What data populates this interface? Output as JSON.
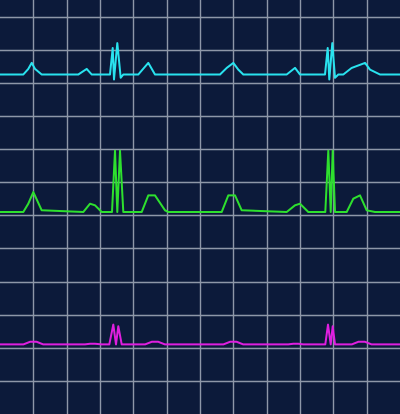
{
  "colors": {
    "background": "#0c1a3a",
    "grid": "#8e97a8",
    "trace_top": "#29e3ef",
    "trace_middle": "#2ee02e",
    "trace_bottom": "#df1fdf"
  },
  "chart_data": {
    "type": "line",
    "title": "",
    "xlabel": "",
    "ylabel": "",
    "grid": true,
    "legend": "none",
    "x_range": [
      0,
      12
    ],
    "y_range": [
      0,
      12.5
    ],
    "vertical_gridlines_x": [
      1,
      2,
      3,
      4,
      5,
      6,
      7,
      8,
      9,
      10,
      11
    ],
    "horizontal_gridlines_y": [
      1,
      2,
      3,
      4,
      5,
      6,
      7,
      8,
      9,
      10,
      11,
      12
    ],
    "series": [
      {
        "key": "top",
        "color": "#29e3ef",
        "baseline": 10.25,
        "x": [
          0.0,
          0.7,
          0.85,
          0.95,
          1.05,
          1.25,
          2.35,
          2.6,
          2.75,
          2.95,
          3.2,
          3.3,
          3.38,
          3.42,
          3.52,
          3.62,
          3.7,
          3.8,
          4.15,
          4.45,
          4.65,
          4.95,
          5.1,
          6.6,
          6.8,
          7.0,
          7.15,
          7.3,
          8.6,
          8.85,
          9.0,
          9.2,
          9.65,
          9.75,
          9.83,
          9.88,
          9.97,
          10.05,
          10.15,
          10.3,
          10.55,
          10.95,
          11.1,
          11.4,
          12.0
        ],
        "y": [
          10.25,
          10.25,
          10.42,
          10.6,
          10.42,
          10.25,
          10.25,
          10.42,
          10.25,
          10.25,
          10.25,
          10.25,
          11.05,
          10.1,
          11.2,
          10.15,
          10.25,
          10.25,
          10.25,
          10.6,
          10.25,
          10.25,
          10.25,
          10.25,
          10.45,
          10.6,
          10.4,
          10.25,
          10.25,
          10.45,
          10.25,
          10.25,
          10.25,
          10.25,
          11.05,
          10.1,
          11.2,
          10.15,
          10.25,
          10.25,
          10.45,
          10.6,
          10.4,
          10.25,
          10.25
        ]
      },
      {
        "key": "middle",
        "color": "#2ee02e",
        "baseline": 6.1,
        "x": [
          0.0,
          0.7,
          0.85,
          1.0,
          1.25,
          2.5,
          2.7,
          2.85,
          3.05,
          3.3,
          3.36,
          3.45,
          3.52,
          3.6,
          3.7,
          3.8,
          4.25,
          4.45,
          4.65,
          4.95,
          5.05,
          6.65,
          6.85,
          7.05,
          7.25,
          8.6,
          8.85,
          9.0,
          9.25,
          9.7,
          9.76,
          9.85,
          9.92,
          9.98,
          10.05,
          10.15,
          10.4,
          10.6,
          10.8,
          11.0,
          11.25,
          12.0
        ],
        "y": [
          6.1,
          6.1,
          6.35,
          6.7,
          6.15,
          6.1,
          6.35,
          6.3,
          6.1,
          6.1,
          6.1,
          7.95,
          6.1,
          7.95,
          6.1,
          6.1,
          6.1,
          6.6,
          6.6,
          6.15,
          6.1,
          6.1,
          6.6,
          6.6,
          6.15,
          6.1,
          6.3,
          6.35,
          6.1,
          6.1,
          6.1,
          7.95,
          6.1,
          7.95,
          6.1,
          6.1,
          6.1,
          6.5,
          6.6,
          6.15,
          6.1,
          6.1
        ]
      },
      {
        "key": "bottom",
        "color": "#df1fdf",
        "baseline": 2.1,
        "x": [
          0.0,
          0.7,
          0.9,
          1.1,
          1.3,
          2.55,
          2.7,
          2.85,
          3.05,
          3.2,
          3.28,
          3.4,
          3.48,
          3.55,
          3.65,
          4.35,
          4.55,
          4.75,
          4.95,
          6.7,
          6.9,
          7.1,
          7.3,
          8.65,
          8.8,
          8.95,
          9.1,
          9.7,
          9.76,
          9.84,
          9.92,
          9.98,
          10.05,
          10.55,
          10.75,
          10.95,
          11.15,
          12.0
        ],
        "y": [
          2.1,
          2.1,
          2.18,
          2.18,
          2.1,
          2.1,
          2.12,
          2.12,
          2.1,
          2.1,
          2.1,
          2.7,
          2.1,
          2.65,
          2.1,
          2.1,
          2.18,
          2.18,
          2.1,
          2.1,
          2.18,
          2.18,
          2.1,
          2.1,
          2.12,
          2.12,
          2.1,
          2.1,
          2.1,
          2.7,
          2.1,
          2.65,
          2.1,
          2.1,
          2.18,
          2.18,
          2.1,
          2.1
        ]
      }
    ]
  }
}
